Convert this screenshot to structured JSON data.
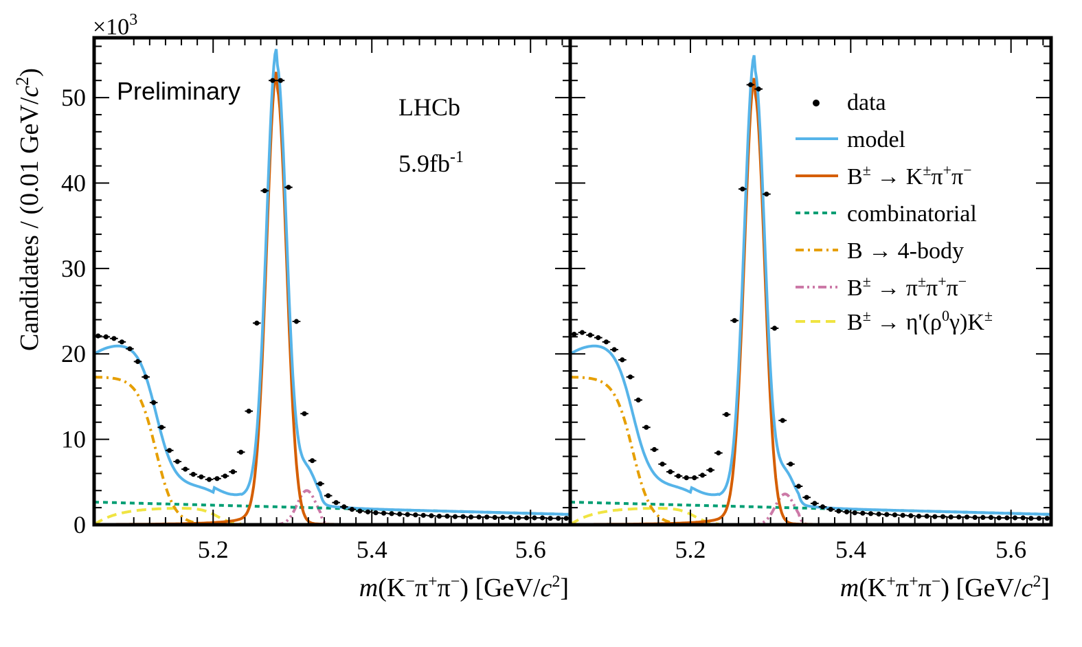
{
  "figure": {
    "ylabel_main": "Candidates / (0.01 GeV/",
    "ylabel_c": "c",
    "ylabel_sup": "2",
    "ylabel_close": ")",
    "y_multiplier": "×10",
    "y_multiplier_exp": "3",
    "left_xlabel_m": "m",
    "left_xlabel_main": "(K",
    "left_xlabel_sup1": "−",
    "left_xlabel_pi1": "π",
    "left_xlabel_sup2": "+",
    "left_xlabel_pi2": "π",
    "left_xlabel_sup3": "−",
    "left_xlabel_unit": ") [GeV/",
    "left_xlabel_c": "c",
    "left_xlabel_c_sup": "2",
    "left_xlabel_close": "]",
    "right_xlabel_m": "m",
    "right_xlabel_main": "(K",
    "right_xlabel_sup1": "+",
    "right_xlabel_pi1": "π",
    "right_xlabel_sup2": "+",
    "right_xlabel_pi2": "π",
    "right_xlabel_sup3": "−",
    "right_xlabel_unit": ") [GeV/",
    "right_xlabel_c": "c",
    "right_xlabel_c_sup": "2",
    "right_xlabel_close": "]",
    "preliminary": "Preliminary",
    "experiment": "LHCb",
    "lumi_main": "5.9fb",
    "lumi_sup": "-1"
  },
  "legend": {
    "data": "data",
    "model": "model",
    "signal_main": "B",
    "signal_sup": "±",
    "signal_rest": " → K",
    "signal_sup2": "±",
    "signal_pi1": "π",
    "signal_sup3": "+",
    "signal_pi2": "π",
    "signal_sup4": "−",
    "combinatorial": "combinatorial",
    "fourbody": "B → 4-body",
    "pipipi_main": "B",
    "pipipi_sup": "±",
    "pipipi_rest": " → π",
    "pipipi_sup2": "±",
    "pipipi_pi1": "π",
    "pipipi_sup3": "+",
    "pipipi_pi2": "π",
    "pipipi_sup4": "−",
    "etap_main": "B",
    "etap_sup": "±",
    "etap_rest": " → η'(ρ",
    "etap_sup2": "0",
    "etap_rest2": "γ)K",
    "etap_sup3": "±"
  },
  "colors": {
    "data": "#000000",
    "model": "#56b4e9",
    "signal": "#d55e00",
    "combinatorial": "#009e73",
    "fourbody": "#e69f00",
    "pipipi": "#cc79a7",
    "etap": "#f0e442"
  },
  "chart_data": [
    {
      "type": "line",
      "panel": "left",
      "xlabel": "m(K−π+π−) [GeV/c2]",
      "ylabel": "Candidates / (0.01 GeV/c2)",
      "xlim": [
        5.05,
        5.65
      ],
      "ylim": [
        0,
        57
      ],
      "xticks": [
        5.2,
        5.4,
        5.6
      ],
      "yticks": [
        0,
        10,
        20,
        30,
        40,
        50
      ],
      "y_scale_note": "×10^3",
      "series": [
        {
          "name": "data",
          "kind": "points",
          "x": [
            5.055,
            5.065,
            5.075,
            5.085,
            5.095,
            5.105,
            5.115,
            5.125,
            5.135,
            5.145,
            5.155,
            5.165,
            5.175,
            5.185,
            5.195,
            5.205,
            5.215,
            5.225,
            5.235,
            5.245,
            5.255,
            5.265,
            5.275,
            5.285,
            5.295,
            5.305,
            5.315,
            5.325,
            5.335,
            5.345,
            5.355,
            5.365,
            5.375,
            5.385,
            5.395,
            5.405,
            5.415,
            5.425,
            5.435,
            5.445,
            5.455,
            5.465,
            5.475,
            5.485,
            5.495,
            5.505,
            5.515,
            5.525,
            5.535,
            5.545,
            5.555,
            5.565,
            5.575,
            5.585,
            5.595,
            5.605,
            5.615,
            5.625,
            5.635,
            5.645
          ],
          "y": [
            22.1,
            22.0,
            21.8,
            21.4,
            20.6,
            19.1,
            17.3,
            14.3,
            11.4,
            8.7,
            7.4,
            6.5,
            5.9,
            5.6,
            5.3,
            5.4,
            5.7,
            6.2,
            8.5,
            13.3,
            23.6,
            39.1,
            52.0,
            52.0,
            39.5,
            23.8,
            13.0,
            7.5,
            4.8,
            3.4,
            2.6,
            2.1,
            1.8,
            1.6,
            1.5,
            1.4,
            1.35,
            1.3,
            1.25,
            1.2,
            1.15,
            1.1,
            1.05,
            1.0,
            1.0,
            0.95,
            0.95,
            0.9,
            0.9,
            0.9,
            0.85,
            0.85,
            0.85,
            0.8,
            0.8,
            0.8,
            0.8,
            0.75,
            0.75,
            0.75
          ]
        }
      ]
    },
    {
      "type": "line",
      "panel": "right",
      "xlabel": "m(K+π+π−) [GeV/c2]",
      "xlim": [
        5.05,
        5.65
      ],
      "ylim": [
        0,
        57
      ],
      "xticks": [
        5.2,
        5.4,
        5.6
      ],
      "series": [
        {
          "name": "data",
          "kind": "points",
          "x": [
            5.055,
            5.065,
            5.075,
            5.085,
            5.095,
            5.105,
            5.115,
            5.125,
            5.135,
            5.145,
            5.155,
            5.165,
            5.175,
            5.185,
            5.195,
            5.205,
            5.215,
            5.225,
            5.235,
            5.245,
            5.255,
            5.265,
            5.275,
            5.285,
            5.295,
            5.305,
            5.315,
            5.325,
            5.335,
            5.345,
            5.355,
            5.365,
            5.375,
            5.385,
            5.395,
            5.405,
            5.415,
            5.425,
            5.435,
            5.445,
            5.455,
            5.465,
            5.475,
            5.485,
            5.495,
            5.505,
            5.515,
            5.525,
            5.535,
            5.545,
            5.555,
            5.565,
            5.575,
            5.585,
            5.595,
            5.605,
            5.615,
            5.625,
            5.635,
            5.645
          ],
          "y": [
            22.3,
            22.5,
            22.2,
            21.9,
            21.4,
            20.5,
            19.3,
            17.3,
            14.6,
            11.4,
            8.8,
            7.1,
            6.2,
            5.7,
            5.5,
            5.5,
            5.8,
            6.4,
            8.4,
            12.9,
            23.9,
            39.3,
            51.5,
            51.0,
            38.7,
            23.0,
            12.2,
            7.1,
            4.5,
            3.2,
            2.5,
            2.1,
            1.8,
            1.6,
            1.5,
            1.4,
            1.35,
            1.3,
            1.25,
            1.2,
            1.15,
            1.1,
            1.05,
            1.0,
            1.0,
            0.95,
            0.95,
            0.9,
            0.9,
            0.9,
            0.85,
            0.85,
            0.85,
            0.8,
            0.8,
            0.8,
            0.8,
            0.75,
            0.75,
            0.75
          ]
        }
      ]
    }
  ]
}
